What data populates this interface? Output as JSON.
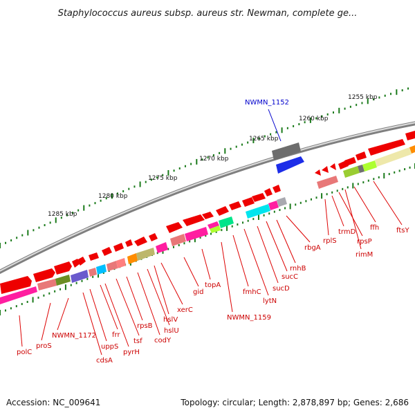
{
  "title": "Staphylococcus aureus subsp. aureus str. Newman, complete ge...",
  "accession": "Accession: NC_009641",
  "summary": "Topology: circular; Length: 2,878,897 bp; Genes: 2,686",
  "scale_labels": [
    "1255 kbp",
    "1260 kbp",
    "1265 kbp",
    "1270 kbp",
    "1275 kbp",
    "1280 kbp",
    "1285 kbp"
  ],
  "highlight": {
    "label": "NWMN_1152",
    "color": "#0000cc"
  },
  "gene_labels": [
    "polC",
    "proS",
    "NWMN_1172",
    "cdsA",
    "uppS",
    "frr",
    "pyrH",
    "tsf",
    "rpsB",
    "codY",
    "hslU",
    "hslV",
    "xerC",
    "gid",
    "topA",
    "NWMN_1159",
    "fmhC",
    "lytN",
    "sucD",
    "sucC",
    "rnhB",
    "rbgA",
    "rplS",
    "trmD",
    "rpsP",
    "rimM",
    "ffh",
    "ftsY"
  ],
  "colors": {
    "gene_label": "#cc0000",
    "leader_line": "#dd0000",
    "strand_arrow": "#ee0000",
    "scale_tick": "#1a7a1a",
    "backbone": "#888888"
  }
}
